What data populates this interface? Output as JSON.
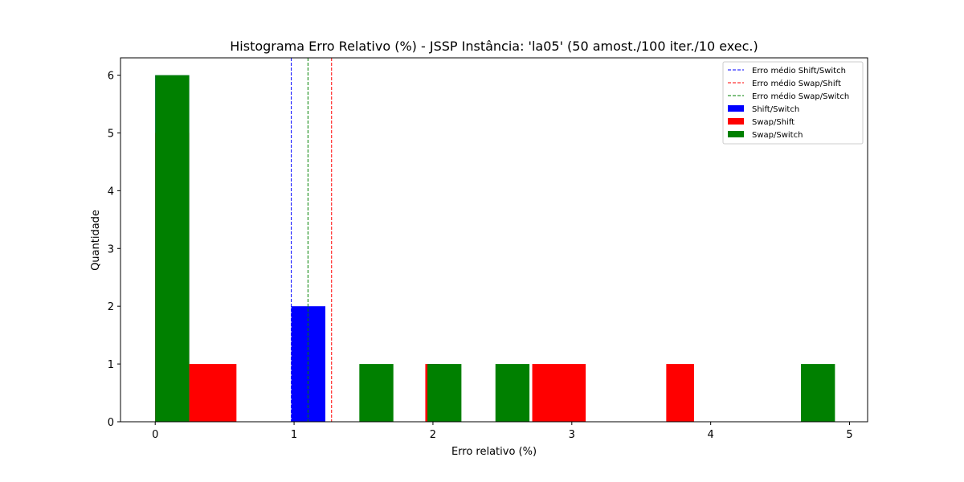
{
  "chart_data": {
    "type": "histogram",
    "title": "Histograma Erro Relativo (%) - JSSP Instância: 'la05' (50 amost./100 iter./10 exec.)",
    "xlabel": "Erro relativo (%)",
    "ylabel": "Quantidade",
    "xlim": [
      -0.25,
      5.13
    ],
    "ylim": [
      0,
      6.3
    ],
    "xticks": [
      0,
      1,
      2,
      3,
      4,
      5
    ],
    "yticks": [
      0,
      1,
      2,
      3,
      4,
      5,
      6
    ],
    "legend_position": "top-right",
    "grid": false,
    "series": [
      {
        "name": "Shift/Switch",
        "color": "#0000ff",
        "bins": [
          {
            "x0": 0.0,
            "x1": 0.245,
            "count": 6
          },
          {
            "x0": 0.98,
            "x1": 1.225,
            "count": 2
          }
        ]
      },
      {
        "name": "Swap/Shift",
        "color": "#ff0000",
        "bins": [
          {
            "x0": 0.0,
            "x1": 0.245,
            "count": 5
          },
          {
            "x0": 0.245,
            "x1": 0.585,
            "count": 1
          },
          {
            "x0": 1.945,
            "x1": 2.05,
            "count": 1
          },
          {
            "x0": 2.715,
            "x1": 3.1,
            "count": 1
          },
          {
            "x0": 3.68,
            "x1": 3.88,
            "count": 1
          }
        ]
      },
      {
        "name": "Swap/Switch",
        "color": "#008000",
        "bins": [
          {
            "x0": 0.0,
            "x1": 0.245,
            "count": 6
          },
          {
            "x0": 1.47,
            "x1": 1.715,
            "count": 1
          },
          {
            "x0": 1.96,
            "x1": 2.205,
            "count": 1
          },
          {
            "x0": 2.45,
            "x1": 2.695,
            "count": 1
          },
          {
            "x0": 4.65,
            "x1": 4.895,
            "count": 1
          }
        ]
      }
    ],
    "mean_lines": [
      {
        "name": "Erro médio Shift/Switch",
        "value": 0.98,
        "color": "#0000ff"
      },
      {
        "name": "Erro médio Swap/Shift",
        "value": 1.27,
        "color": "#ff0000"
      },
      {
        "name": "Erro médio Swap/Switch",
        "value": 1.1,
        "color": "#008000"
      }
    ]
  }
}
